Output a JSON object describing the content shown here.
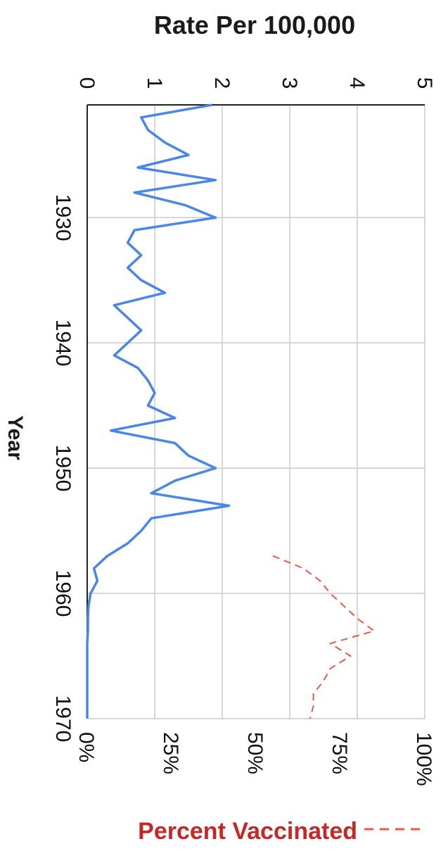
{
  "chart_data": {
    "type": "line",
    "orientation": "rotated-90-clockwise",
    "title": "Rate Per 100,000",
    "xlabel": "Year",
    "x_ticks": [
      "1930",
      "1940",
      "1950",
      "1960",
      "1970"
    ],
    "xlim": [
      1921,
      1970
    ],
    "rate_axis": {
      "label": "Rate Per 100,000",
      "ticks": [
        "0",
        "1",
        "2",
        "3",
        "4",
        "5"
      ],
      "lim": [
        0,
        5
      ]
    },
    "percent_axis": {
      "ticks": [
        "0%",
        "25%",
        "50%",
        "75%",
        "100%"
      ],
      "lim": [
        0,
        100
      ]
    },
    "grid": true,
    "series": [
      {
        "name": "",
        "axis": "rate",
        "color": "#4a86e8",
        "style": "solid",
        "points": [
          [
            1921,
            1.85
          ],
          [
            1922,
            0.8
          ],
          [
            1923,
            0.9
          ],
          [
            1924,
            1.15
          ],
          [
            1925,
            1.5
          ],
          [
            1926,
            0.75
          ],
          [
            1927,
            1.9
          ],
          [
            1928,
            0.7
          ],
          [
            1929,
            1.45
          ],
          [
            1930,
            1.9
          ],
          [
            1931,
            0.7
          ],
          [
            1932,
            0.6
          ],
          [
            1933,
            0.8
          ],
          [
            1934,
            0.6
          ],
          [
            1935,
            0.8
          ],
          [
            1936,
            1.15
          ],
          [
            1937,
            0.4
          ],
          [
            1938,
            0.6
          ],
          [
            1939,
            0.8
          ],
          [
            1940,
            0.6
          ],
          [
            1941,
            0.4
          ],
          [
            1942,
            0.75
          ],
          [
            1943,
            0.9
          ],
          [
            1944,
            1.0
          ],
          [
            1945,
            0.9
          ],
          [
            1946,
            1.3
          ],
          [
            1947,
            0.35
          ],
          [
            1948,
            1.3
          ],
          [
            1949,
            1.5
          ],
          [
            1950,
            1.9
          ],
          [
            1951,
            1.3
          ],
          [
            1952,
            0.95
          ],
          [
            1953,
            2.1
          ],
          [
            1954,
            0.95
          ],
          [
            1955,
            0.8
          ],
          [
            1956,
            0.6
          ],
          [
            1957,
            0.3
          ],
          [
            1958,
            0.1
          ],
          [
            1959,
            0.15
          ],
          [
            1960,
            0.05
          ],
          [
            1961,
            0.02
          ],
          [
            1962,
            0.01
          ],
          [
            1963,
            0.01
          ],
          [
            1964,
            0.0
          ],
          [
            1970,
            0.0
          ]
        ]
      },
      {
        "name": "Percent Vaccinated",
        "axis": "percent",
        "color": "#e8594a",
        "style": "dashed",
        "points": [
          [
            1957,
            55
          ],
          [
            1958,
            64
          ],
          [
            1959,
            69
          ],
          [
            1960,
            72
          ],
          [
            1961,
            76
          ],
          [
            1962,
            80
          ],
          [
            1963,
            85
          ],
          [
            1964,
            72
          ],
          [
            1965,
            78
          ],
          [
            1966,
            72
          ],
          [
            1967,
            70
          ],
          [
            1968,
            67
          ],
          [
            1969,
            67
          ],
          [
            1970,
            66
          ]
        ]
      }
    ],
    "legend": {
      "label": "Percent Vaccinated",
      "position": "bottom-right",
      "color": "#c62828"
    }
  }
}
